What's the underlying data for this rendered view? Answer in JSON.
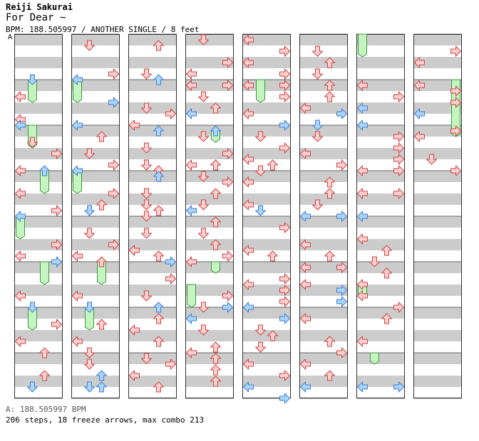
{
  "header": {
    "artist": "Reiji Sakurai",
    "title": "For Dear ~",
    "meta": "BPM: 188.505997 / ANOTHER SINGLE / 8 feet",
    "speed_marker": "A"
  },
  "footer": {
    "bpm_line": "A: 188.505997 BPM",
    "stats_line": "206 steps, 18 freeze arrows, max combo 213"
  },
  "colors": {
    "red_fill": "#fdd0d0",
    "red_stroke": "#cc4444",
    "blue_fill": "#acd4fa",
    "blue_stroke": "#3f7fd0",
    "freeze_fill": "#c4f4c0",
    "freeze_stroke": "#3c9a3c",
    "stripe": "#cccccc"
  },
  "chart_data": {
    "type": "stepchart",
    "bpm": 188.505997,
    "difficulty": "ANOTHER",
    "style": "SINGLE",
    "feet": 8,
    "steps": 206,
    "freeze_arrows": 18,
    "max_combo": 213,
    "lanes": [
      "left",
      "down",
      "up",
      "right"
    ],
    "columns": 8,
    "rows_per_column": 32,
    "notes": [
      {
        "c": 0,
        "l": 0,
        "r": 5.5,
        "k": "r"
      },
      {
        "c": 0,
        "l": 1,
        "r": 4,
        "k": "b"
      },
      {
        "c": 0,
        "l": 0,
        "r": 7.5,
        "k": "r"
      },
      {
        "c": 0,
        "l": 1,
        "r": 9.5,
        "k": "r"
      },
      {
        "c": 0,
        "l": 0,
        "r": 8,
        "k": "b"
      },
      {
        "c": 0,
        "l": 3,
        "r": 10.5,
        "k": "r"
      },
      {
        "c": 0,
        "l": 0,
        "r": 12,
        "k": "r"
      },
      {
        "c": 0,
        "l": 2,
        "r": 12,
        "k": "b"
      },
      {
        "c": 0,
        "l": 0,
        "r": 14,
        "k": "r"
      },
      {
        "c": 0,
        "l": 3,
        "r": 15.5,
        "k": "r"
      },
      {
        "c": 0,
        "l": 0,
        "r": 16,
        "k": "b"
      },
      {
        "c": 0,
        "l": 3,
        "r": 18.5,
        "k": "r"
      },
      {
        "c": 0,
        "l": 0,
        "r": 19.5,
        "k": "r"
      },
      {
        "c": 0,
        "l": 3,
        "r": 20,
        "k": "b"
      },
      {
        "c": 0,
        "l": 0,
        "r": 23,
        "k": "r"
      },
      {
        "c": 0,
        "l": 1,
        "r": 24,
        "k": "b"
      },
      {
        "c": 0,
        "l": 3,
        "r": 25.5,
        "k": "r"
      },
      {
        "c": 0,
        "l": 0,
        "r": 27,
        "k": "r"
      },
      {
        "c": 0,
        "l": 2,
        "r": 28,
        "k": "r"
      },
      {
        "c": 0,
        "l": 2,
        "r": 30,
        "k": "r"
      },
      {
        "c": 0,
        "l": 1,
        "r": 31,
        "k": "b"
      },
      {
        "c": 1,
        "l": 1,
        "r": 1,
        "k": "r"
      },
      {
        "c": 1,
        "l": 0,
        "r": 4,
        "k": "b"
      },
      {
        "c": 1,
        "l": 3,
        "r": 3.5,
        "k": "r"
      },
      {
        "c": 1,
        "l": 3,
        "r": 6,
        "k": "b"
      },
      {
        "c": 1,
        "l": 0,
        "r": 8,
        "k": "b"
      },
      {
        "c": 1,
        "l": 2,
        "r": 9,
        "k": "r"
      },
      {
        "c": 1,
        "l": 1,
        "r": 10.5,
        "k": "r"
      },
      {
        "c": 1,
        "l": 3,
        "r": 11.5,
        "k": "r"
      },
      {
        "c": 1,
        "l": 0,
        "r": 12,
        "k": "b"
      },
      {
        "c": 1,
        "l": 1,
        "r": 15.5,
        "k": "b"
      },
      {
        "c": 1,
        "l": 2,
        "r": 15,
        "k": "r"
      },
      {
        "c": 1,
        "l": 3,
        "r": 14,
        "k": "r"
      },
      {
        "c": 1,
        "l": 1,
        "r": 17.5,
        "k": "r"
      },
      {
        "c": 1,
        "l": 3,
        "r": 18.5,
        "k": "r"
      },
      {
        "c": 1,
        "l": 0,
        "r": 19.5,
        "k": "r"
      },
      {
        "c": 1,
        "l": 2,
        "r": 20,
        "k": "r"
      },
      {
        "c": 1,
        "l": 0,
        "r": 23,
        "k": "r"
      },
      {
        "c": 1,
        "l": 1,
        "r": 24,
        "k": "b"
      },
      {
        "c": 1,
        "l": 2,
        "r": 25.5,
        "k": "r"
      },
      {
        "c": 1,
        "l": 0,
        "r": 27,
        "k": "r"
      },
      {
        "c": 1,
        "l": 1,
        "r": 28,
        "k": "r"
      },
      {
        "c": 1,
        "l": 1,
        "r": 29,
        "k": "r"
      },
      {
        "c": 1,
        "l": 2,
        "r": 30,
        "k": "b"
      },
      {
        "c": 1,
        "l": 1,
        "r": 31,
        "k": "b"
      },
      {
        "c": 1,
        "l": 2,
        "r": 31,
        "k": "b"
      },
      {
        "c": 2,
        "l": 2,
        "r": 1,
        "k": "r"
      },
      {
        "c": 2,
        "l": 1,
        "r": 3.5,
        "k": "r"
      },
      {
        "c": 2,
        "l": 2,
        "r": 4,
        "k": "b"
      },
      {
        "c": 2,
        "l": 1,
        "r": 6.5,
        "k": "r"
      },
      {
        "c": 2,
        "l": 3,
        "r": 7,
        "k": "r"
      },
      {
        "c": 2,
        "l": 0,
        "r": 8,
        "k": "r"
      },
      {
        "c": 2,
        "l": 2,
        "r": 8.5,
        "k": "b"
      },
      {
        "c": 2,
        "l": 1,
        "r": 10,
        "k": "r"
      },
      {
        "c": 2,
        "l": 1,
        "r": 11.5,
        "k": "r"
      },
      {
        "c": 2,
        "l": 2,
        "r": 12,
        "k": "r"
      },
      {
        "c": 2,
        "l": 2,
        "r": 12.5,
        "k": "b"
      },
      {
        "c": 2,
        "l": 1,
        "r": 14,
        "k": "r"
      },
      {
        "c": 2,
        "l": 1,
        "r": 15,
        "k": "r"
      },
      {
        "c": 2,
        "l": 2,
        "r": 15.5,
        "k": "r"
      },
      {
        "c": 2,
        "l": 1,
        "r": 16,
        "k": "r"
      },
      {
        "c": 2,
        "l": 1,
        "r": 17.5,
        "k": "r"
      },
      {
        "c": 2,
        "l": 2,
        "r": 19.5,
        "k": "r"
      },
      {
        "c": 2,
        "l": 0,
        "r": 19,
        "k": "r"
      },
      {
        "c": 2,
        "l": 3,
        "r": 20,
        "k": "b"
      },
      {
        "c": 2,
        "l": 3,
        "r": 21.5,
        "k": "r"
      },
      {
        "c": 2,
        "l": 1,
        "r": 23,
        "k": "r"
      },
      {
        "c": 2,
        "l": 2,
        "r": 24,
        "k": "b"
      },
      {
        "c": 2,
        "l": 0,
        "r": 26,
        "k": "r"
      },
      {
        "c": 2,
        "l": 2,
        "r": 25,
        "k": "r"
      },
      {
        "c": 2,
        "l": 2,
        "r": 27,
        "k": "r"
      },
      {
        "c": 2,
        "l": 1,
        "r": 28.5,
        "k": "r"
      },
      {
        "c": 2,
        "l": 3,
        "r": 29,
        "k": "r"
      },
      {
        "c": 2,
        "l": 0,
        "r": 30,
        "k": "r"
      },
      {
        "c": 2,
        "l": 2,
        "r": 31,
        "k": "r"
      },
      {
        "c": 3,
        "l": 1,
        "r": 0.5,
        "k": "r"
      },
      {
        "c": 3,
        "l": 3,
        "r": 2.5,
        "k": "r"
      },
      {
        "c": 3,
        "l": 0,
        "r": 3.5,
        "k": "r"
      },
      {
        "c": 3,
        "l": 0,
        "r": 4.5,
        "k": "r"
      },
      {
        "c": 3,
        "l": 3,
        "r": 4.5,
        "k": "r"
      },
      {
        "c": 3,
        "l": 1,
        "r": 5.5,
        "k": "r"
      },
      {
        "c": 3,
        "l": 0,
        "r": 7,
        "k": "b"
      },
      {
        "c": 3,
        "l": 2,
        "r": 6.5,
        "k": "r"
      },
      {
        "c": 3,
        "l": 2,
        "r": 8.5,
        "k": "b"
      },
      {
        "c": 3,
        "l": 1,
        "r": 9,
        "k": "r"
      },
      {
        "c": 3,
        "l": 3,
        "r": 10.5,
        "k": "r"
      },
      {
        "c": 3,
        "l": 0,
        "r": 11.5,
        "k": "r"
      },
      {
        "c": 3,
        "l": 2,
        "r": 11.5,
        "k": "r"
      },
      {
        "c": 3,
        "l": 1,
        "r": 12.5,
        "k": "r"
      },
      {
        "c": 3,
        "l": 3,
        "r": 13,
        "k": "r"
      },
      {
        "c": 3,
        "l": 2,
        "r": 14,
        "k": "r"
      },
      {
        "c": 3,
        "l": 1,
        "r": 15,
        "k": "r"
      },
      {
        "c": 3,
        "l": 0,
        "r": 15.5,
        "k": "b"
      },
      {
        "c": 3,
        "l": 2,
        "r": 16.5,
        "k": "r"
      },
      {
        "c": 3,
        "l": 1,
        "r": 17.5,
        "k": "r"
      },
      {
        "c": 3,
        "l": 3,
        "r": 19.5,
        "k": "r"
      },
      {
        "c": 3,
        "l": 2,
        "r": 18.5,
        "k": "r"
      },
      {
        "c": 3,
        "l": 0,
        "r": 20,
        "k": "r"
      },
      {
        "c": 3,
        "l": 3,
        "r": 23,
        "k": "r"
      },
      {
        "c": 3,
        "l": 1,
        "r": 24,
        "k": "r"
      },
      {
        "c": 3,
        "l": 3,
        "r": 24,
        "k": "b"
      },
      {
        "c": 3,
        "l": 0,
        "r": 25,
        "k": "b"
      },
      {
        "c": 3,
        "l": 1,
        "r": 26,
        "k": "r"
      },
      {
        "c": 3,
        "l": 2,
        "r": 27.5,
        "k": "r"
      },
      {
        "c": 3,
        "l": 0,
        "r": 28,
        "k": "r"
      },
      {
        "c": 3,
        "l": 2,
        "r": 28.5,
        "k": "r"
      },
      {
        "c": 3,
        "l": 2,
        "r": 29.5,
        "k": "r"
      },
      {
        "c": 3,
        "l": 2,
        "r": 30.5,
        "k": "r"
      },
      {
        "c": 4,
        "l": 0,
        "r": 0.5,
        "k": "r"
      },
      {
        "c": 4,
        "l": 3,
        "r": 1.5,
        "k": "r"
      },
      {
        "c": 4,
        "l": 0,
        "r": 2.5,
        "k": "r"
      },
      {
        "c": 4,
        "l": 3,
        "r": 3.5,
        "k": "r"
      },
      {
        "c": 4,
        "l": 0,
        "r": 4.5,
        "k": "r"
      },
      {
        "c": 4,
        "l": 3,
        "r": 4.5,
        "k": "r"
      },
      {
        "c": 4,
        "l": 3,
        "r": 5.5,
        "k": "r"
      },
      {
        "c": 4,
        "l": 0,
        "r": 7,
        "k": "r"
      },
      {
        "c": 4,
        "l": 3,
        "r": 8,
        "k": "b"
      },
      {
        "c": 4,
        "l": 1,
        "r": 9,
        "k": "r"
      },
      {
        "c": 4,
        "l": 3,
        "r": 10,
        "k": "r"
      },
      {
        "c": 4,
        "l": 0,
        "r": 11,
        "k": "r"
      },
      {
        "c": 4,
        "l": 2,
        "r": 11.5,
        "k": "r"
      },
      {
        "c": 4,
        "l": 1,
        "r": 12,
        "k": "r"
      },
      {
        "c": 4,
        "l": 0,
        "r": 13,
        "k": "r"
      },
      {
        "c": 4,
        "l": 0,
        "r": 15,
        "k": "r"
      },
      {
        "c": 4,
        "l": 1,
        "r": 15.5,
        "k": "b"
      },
      {
        "c": 4,
        "l": 3,
        "r": 17,
        "k": "r"
      },
      {
        "c": 4,
        "l": 0,
        "r": 19,
        "k": "r"
      },
      {
        "c": 4,
        "l": 2,
        "r": 19.5,
        "k": "r"
      },
      {
        "c": 4,
        "l": 3,
        "r": 21.5,
        "k": "r"
      },
      {
        "c": 4,
        "l": 0,
        "r": 22,
        "k": "r"
      },
      {
        "c": 4,
        "l": 3,
        "r": 22.5,
        "k": "r"
      },
      {
        "c": 4,
        "l": 0,
        "r": 24,
        "k": "b"
      },
      {
        "c": 4,
        "l": 3,
        "r": 23.5,
        "k": "r"
      },
      {
        "c": 4,
        "l": 3,
        "r": 25,
        "k": "b"
      },
      {
        "c": 4,
        "l": 1,
        "r": 26,
        "k": "r"
      },
      {
        "c": 4,
        "l": 2,
        "r": 26.5,
        "k": "r"
      },
      {
        "c": 4,
        "l": 1,
        "r": 27.5,
        "k": "r"
      },
      {
        "c": 4,
        "l": 0,
        "r": 29,
        "k": "r"
      },
      {
        "c": 4,
        "l": 3,
        "r": 30,
        "k": "r"
      },
      {
        "c": 4,
        "l": 0,
        "r": 31,
        "k": "b"
      },
      {
        "c": 4,
        "l": 3,
        "r": 32,
        "k": "b"
      },
      {
        "c": 5,
        "l": 1,
        "r": 1.5,
        "k": "r"
      },
      {
        "c": 5,
        "l": 2,
        "r": 2.5,
        "k": "r"
      },
      {
        "c": 5,
        "l": 1,
        "r": 3.5,
        "k": "r"
      },
      {
        "c": 5,
        "l": 2,
        "r": 4.5,
        "k": "r"
      },
      {
        "c": 5,
        "l": 2,
        "r": 5.5,
        "k": "r"
      },
      {
        "c": 5,
        "l": 0,
        "r": 6.5,
        "k": "r"
      },
      {
        "c": 5,
        "l": 3,
        "r": 7,
        "k": "b"
      },
      {
        "c": 5,
        "l": 1,
        "r": 8,
        "k": "b"
      },
      {
        "c": 5,
        "l": 1,
        "r": 9,
        "k": "r"
      },
      {
        "c": 5,
        "l": 0,
        "r": 10.5,
        "k": "r"
      },
      {
        "c": 5,
        "l": 3,
        "r": 11.5,
        "k": "r"
      },
      {
        "c": 5,
        "l": 2,
        "r": 13,
        "k": "r"
      },
      {
        "c": 5,
        "l": 2,
        "r": 14,
        "k": "r"
      },
      {
        "c": 5,
        "l": 1,
        "r": 15,
        "k": "r"
      },
      {
        "c": 5,
        "l": 0,
        "r": 16,
        "k": "b"
      },
      {
        "c": 5,
        "l": 3,
        "r": 16,
        "k": "b"
      },
      {
        "c": 5,
        "l": 0,
        "r": 18.5,
        "k": "r"
      },
      {
        "c": 5,
        "l": 2,
        "r": 19.5,
        "k": "r"
      },
      {
        "c": 5,
        "l": 0,
        "r": 20.5,
        "k": "r"
      },
      {
        "c": 5,
        "l": 3,
        "r": 20.5,
        "k": "r"
      },
      {
        "c": 5,
        "l": 0,
        "r": 22,
        "k": "r"
      },
      {
        "c": 5,
        "l": 3,
        "r": 22.5,
        "k": "b"
      },
      {
        "c": 5,
        "l": 3,
        "r": 23.5,
        "k": "b"
      },
      {
        "c": 5,
        "l": 0,
        "r": 25,
        "k": "r"
      },
      {
        "c": 5,
        "l": 2,
        "r": 27,
        "k": "r"
      },
      {
        "c": 5,
        "l": 3,
        "r": 28,
        "k": "r"
      },
      {
        "c": 5,
        "l": 0,
        "r": 29,
        "k": "r"
      },
      {
        "c": 5,
        "l": 2,
        "r": 30,
        "k": "r"
      },
      {
        "c": 5,
        "l": 0,
        "r": 31,
        "k": "b"
      },
      {
        "c": 6,
        "l": 0,
        "r": 4.5,
        "k": "r"
      },
      {
        "c": 6,
        "l": 3,
        "r": 5.5,
        "k": "r"
      },
      {
        "c": 6,
        "l": 0,
        "r": 6.5,
        "k": "b"
      },
      {
        "c": 6,
        "l": 0,
        "r": 8,
        "k": "b"
      },
      {
        "c": 6,
        "l": 3,
        "r": 9,
        "k": "r"
      },
      {
        "c": 6,
        "l": 3,
        "r": 10,
        "k": "r"
      },
      {
        "c": 6,
        "l": 3,
        "r": 11,
        "k": "r"
      },
      {
        "c": 6,
        "l": 3,
        "r": 12,
        "k": "r"
      },
      {
        "c": 6,
        "l": 0,
        "r": 12,
        "k": "r"
      },
      {
        "c": 6,
        "l": 0,
        "r": 14,
        "k": "r"
      },
      {
        "c": 6,
        "l": 3,
        "r": 14,
        "k": "r"
      },
      {
        "c": 6,
        "l": 0,
        "r": 16,
        "k": "b"
      },
      {
        "c": 6,
        "l": 0,
        "r": 18,
        "k": "r"
      },
      {
        "c": 6,
        "l": 2,
        "r": 19,
        "k": "r"
      },
      {
        "c": 6,
        "l": 1,
        "r": 20,
        "k": "r"
      },
      {
        "c": 6,
        "l": 2,
        "r": 21,
        "k": "r"
      },
      {
        "c": 6,
        "l": 0,
        "r": 22,
        "k": "r"
      },
      {
        "c": 6,
        "l": 0,
        "r": 23,
        "k": "r"
      },
      {
        "c": 6,
        "l": 3,
        "r": 24,
        "k": "r"
      },
      {
        "c": 6,
        "l": 2,
        "r": 25,
        "k": "r"
      },
      {
        "c": 6,
        "l": 0,
        "r": 27,
        "k": "r"
      },
      {
        "c": 6,
        "l": 3,
        "r": 31,
        "k": "b"
      },
      {
        "c": 6,
        "l": 0,
        "r": 31,
        "k": "b"
      },
      {
        "c": 7,
        "l": 3,
        "r": 1.5,
        "k": "r"
      },
      {
        "c": 7,
        "l": 0,
        "r": 2.5,
        "k": "r"
      },
      {
        "c": 7,
        "l": 0,
        "r": 4.5,
        "k": "r"
      },
      {
        "c": 7,
        "l": 3,
        "r": 5,
        "k": "r"
      },
      {
        "c": 7,
        "l": 3,
        "r": 6,
        "k": "r"
      },
      {
        "c": 7,
        "l": 0,
        "r": 7,
        "k": "b"
      },
      {
        "c": 7,
        "l": 0,
        "r": 9,
        "k": "r"
      },
      {
        "c": 7,
        "l": 3,
        "r": 8.5,
        "k": "r"
      },
      {
        "c": 7,
        "l": 1,
        "r": 11,
        "k": "r"
      },
      {
        "c": 7,
        "l": 3,
        "r": 12,
        "k": "r"
      }
    ],
    "freezes": [
      {
        "c": 0,
        "l": 1,
        "s": 4,
        "e": 6
      },
      {
        "c": 0,
        "l": 1,
        "s": 8,
        "e": 10
      },
      {
        "c": 0,
        "l": 2,
        "s": 12,
        "e": 14
      },
      {
        "c": 0,
        "l": 0,
        "s": 16,
        "e": 18
      },
      {
        "c": 0,
        "l": 2,
        "s": 20,
        "e": 22
      },
      {
        "c": 0,
        "l": 1,
        "s": 24,
        "e": 26
      },
      {
        "c": 1,
        "l": 0,
        "s": 4,
        "e": 6
      },
      {
        "c": 1,
        "l": 0,
        "s": 12,
        "e": 14
      },
      {
        "c": 1,
        "l": 2,
        "s": 20,
        "e": 22
      },
      {
        "c": 1,
        "l": 1,
        "s": 24,
        "e": 26
      },
      {
        "c": 3,
        "l": 2,
        "s": 8.5,
        "e": 9.5
      },
      {
        "c": 3,
        "l": 2,
        "s": 20,
        "e": 21
      },
      {
        "c": 3,
        "l": 0,
        "s": 22,
        "e": 24
      },
      {
        "c": 4,
        "l": 1,
        "s": 4,
        "e": 6
      },
      {
        "c": 6,
        "l": 0,
        "s": 0,
        "e": 2
      },
      {
        "c": 6,
        "l": 0,
        "s": 22,
        "e": 23
      },
      {
        "c": 6,
        "l": 1,
        "s": 28,
        "e": 29
      },
      {
        "c": 7,
        "l": 3,
        "s": 4,
        "e": 9
      }
    ]
  }
}
